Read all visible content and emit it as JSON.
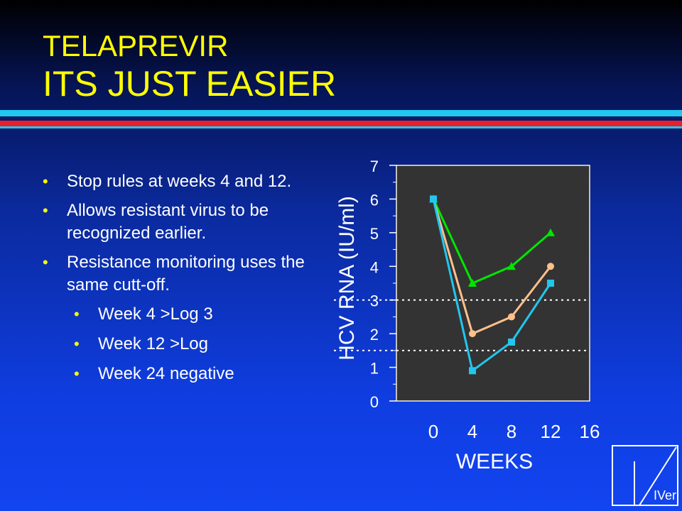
{
  "slide": {
    "title_line1": "TELAPREVIR",
    "title_line2": "ITS JUST EASIER",
    "bullets": [
      "Stop rules at weeks 4 and 12.",
      "Allows resistant virus to be recognized earlier.",
      "Resistance monitoring uses the same cutt-off."
    ],
    "sub_bullets": [
      "Week 4 >Log 3",
      "Week 12 >Log",
      "Week 24 negative"
    ],
    "logo_text": "IVer"
  },
  "colors": {
    "title": "#ffff00",
    "text": "#ffffff",
    "plot_bg": "#333333",
    "green": "#00e600",
    "peach": "#ffc08c",
    "cyan": "#22c6ee"
  },
  "chart_data": {
    "type": "line",
    "title": "",
    "xlabel": "WEEKS",
    "ylabel": "HCV RNA (IU/ml)",
    "xlim": [
      0,
      16
    ],
    "ylim": [
      0,
      7
    ],
    "xticks": [
      0,
      4,
      8,
      12,
      16
    ],
    "yticks": [
      0,
      1,
      2,
      3,
      4,
      5,
      6,
      7
    ],
    "reference_lines": [
      3,
      1.5
    ],
    "series": [
      {
        "marker": "triangle",
        "color": "#00e600",
        "x": [
          0,
          4,
          8,
          12
        ],
        "y": [
          6,
          3.5,
          4,
          5
        ]
      },
      {
        "marker": "circle",
        "color": "#ffc08c",
        "x": [
          0,
          4,
          8,
          12
        ],
        "y": [
          6,
          2,
          2.5,
          4
        ]
      },
      {
        "marker": "square",
        "color": "#22c6ee",
        "x": [
          0,
          4,
          8,
          12
        ],
        "y": [
          6,
          0.9,
          1.75,
          3.5
        ]
      }
    ]
  }
}
